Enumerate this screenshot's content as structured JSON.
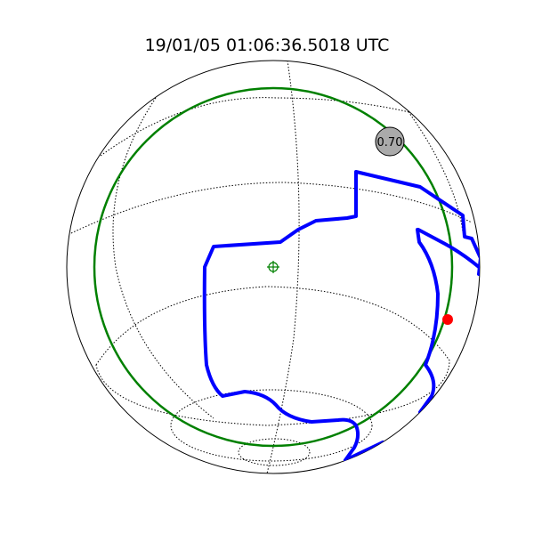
{
  "title": "19/01/05 01:06:36.5018 UTC",
  "moon": {
    "label": "0.70",
    "fill": "#aaaaaa"
  },
  "colors": {
    "globe_outline": "#000000",
    "graticule": "#000000",
    "horizon_circle": "#008000",
    "coverage_boundary": "#0000ff",
    "target_marker": "#008000",
    "point_marker": "#ff0000"
  },
  "icons": {
    "target": "crosshair-circle-icon",
    "point": "red-dot-icon"
  }
}
